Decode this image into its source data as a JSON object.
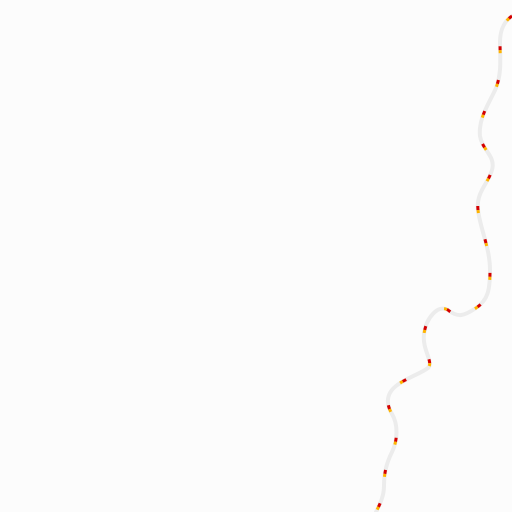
{
  "map": {
    "background_color": "#fcfcfc",
    "features": [
      {
        "kind": "boundary-line",
        "casing_color": "#ececec",
        "dash_colors": [
          "#d40000",
          "#ffb400"
        ],
        "style": "dashed"
      }
    ]
  }
}
